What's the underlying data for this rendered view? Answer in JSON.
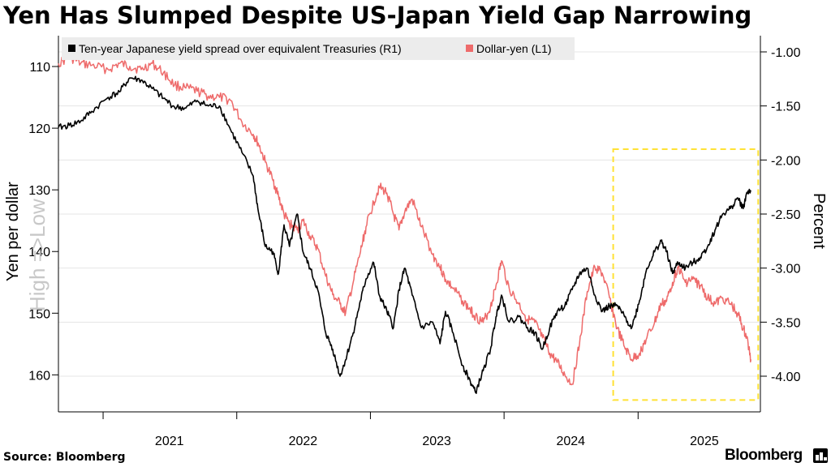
{
  "header": {
    "title": "Yen Has Slumped Despite US-Japan Yield Gap Narrowing"
  },
  "footer": {
    "source": "Source: Bloomberg",
    "brand": "Bloomberg"
  },
  "chart_data": {
    "type": "line",
    "title": "Yen Has Slumped Despite US-Japan Yield Gap Narrowing",
    "legend_placement": "top",
    "grid": true,
    "x_ticks": [
      "2021",
      "2022",
      "2023",
      "2024",
      "2025"
    ],
    "left_axis": {
      "label": "Yen per dollar",
      "annotation": "High =>Low",
      "inverted": true,
      "range": [
        105,
        166
      ],
      "ticks": [
        110,
        120,
        130,
        140,
        150,
        160
      ]
    },
    "right_axis": {
      "label": "Percent",
      "range": [
        -4.33,
        -0.85
      ],
      "ticks": [
        "-1.00",
        "-1.50",
        "-2.00",
        "-2.50",
        "-3.00",
        "-3.50",
        "-4.00"
      ]
    },
    "series": [
      {
        "name": "Ten-year Japanese yield spread over equivalent Treasuries (R1)",
        "axis": "right",
        "color": "#000000",
        "points": [
          [
            "2020-09-01",
            -1.7
          ],
          [
            "2020-10-01",
            -1.68
          ],
          [
            "2020-11-01",
            -1.64
          ],
          [
            "2020-12-01",
            -1.55
          ],
          [
            "2021-01-15",
            -1.42
          ],
          [
            "2021-02-15",
            -1.37
          ],
          [
            "2021-03-15",
            -1.24
          ],
          [
            "2021-04-15",
            -1.26
          ],
          [
            "2021-05-15",
            -1.34
          ],
          [
            "2021-06-15",
            -1.43
          ],
          [
            "2021-07-15",
            -1.51
          ],
          [
            "2021-08-15",
            -1.52
          ],
          [
            "2021-09-15",
            -1.45
          ],
          [
            "2021-10-15",
            -1.5
          ],
          [
            "2021-11-15",
            -1.5
          ],
          [
            "2021-12-15",
            -1.72
          ],
          [
            "2022-01-15",
            -1.93
          ],
          [
            "2022-02-15",
            -2.15
          ],
          [
            "2022-03-01",
            -2.48
          ],
          [
            "2022-03-20",
            -2.8
          ],
          [
            "2022-04-10",
            -2.85
          ],
          [
            "2022-04-25",
            -3.05
          ],
          [
            "2022-05-10",
            -2.6
          ],
          [
            "2022-05-25",
            -2.8
          ],
          [
            "2022-06-15",
            -2.5
          ],
          [
            "2022-07-01",
            -2.85
          ],
          [
            "2022-07-20",
            -3.0
          ],
          [
            "2022-08-10",
            -3.2
          ],
          [
            "2022-09-01",
            -3.6
          ],
          [
            "2022-09-20",
            -3.75
          ],
          [
            "2022-10-10",
            -4.0
          ],
          [
            "2022-10-25",
            -3.85
          ],
          [
            "2022-11-15",
            -3.6
          ],
          [
            "2022-12-05",
            -3.3
          ],
          [
            "2022-12-20",
            -3.1
          ],
          [
            "2023-01-10",
            -2.95
          ],
          [
            "2023-01-25",
            -3.25
          ],
          [
            "2023-02-15",
            -3.4
          ],
          [
            "2023-03-05",
            -3.55
          ],
          [
            "2023-03-20",
            -3.2
          ],
          [
            "2023-04-05",
            -3.0
          ],
          [
            "2023-04-25",
            -3.25
          ],
          [
            "2023-05-20",
            -3.55
          ],
          [
            "2023-06-20",
            -3.5
          ],
          [
            "2023-07-10",
            -3.7
          ],
          [
            "2023-07-25",
            -3.4
          ],
          [
            "2023-08-15",
            -3.6
          ],
          [
            "2023-09-10",
            -3.9
          ],
          [
            "2023-10-01",
            -4.05
          ],
          [
            "2023-10-15",
            -4.15
          ],
          [
            "2023-11-05",
            -3.95
          ],
          [
            "2023-11-25",
            -3.75
          ],
          [
            "2023-12-10",
            -3.45
          ],
          [
            "2023-12-25",
            -3.25
          ],
          [
            "2024-01-15",
            -3.5
          ],
          [
            "2024-02-10",
            -3.45
          ],
          [
            "2024-03-05",
            -3.55
          ],
          [
            "2024-03-25",
            -3.6
          ],
          [
            "2024-04-15",
            -3.75
          ],
          [
            "2024-05-05",
            -3.55
          ],
          [
            "2024-05-25",
            -3.4
          ],
          [
            "2024-06-15",
            -3.35
          ],
          [
            "2024-07-05",
            -3.2
          ],
          [
            "2024-07-25",
            -3.05
          ],
          [
            "2024-08-15",
            -3.0
          ],
          [
            "2024-09-05",
            -3.25
          ],
          [
            "2024-09-25",
            -3.4
          ],
          [
            "2024-10-15",
            -3.35
          ],
          [
            "2024-11-05",
            -3.35
          ],
          [
            "2024-11-25",
            -3.45
          ],
          [
            "2024-12-15",
            -3.55
          ],
          [
            "2025-01-05",
            -3.3
          ],
          [
            "2025-01-25",
            -3.0
          ],
          [
            "2025-02-15",
            -2.85
          ],
          [
            "2025-03-05",
            -2.75
          ],
          [
            "2025-03-20",
            -2.85
          ],
          [
            "2025-04-05",
            -3.05
          ],
          [
            "2025-04-20",
            -2.95
          ],
          [
            "2025-05-10",
            -3.0
          ],
          [
            "2025-05-30",
            -2.95
          ],
          [
            "2025-06-20",
            -2.9
          ],
          [
            "2025-07-10",
            -2.8
          ],
          [
            "2025-07-30",
            -2.65
          ],
          [
            "2025-08-20",
            -2.5
          ],
          [
            "2025-09-10",
            -2.45
          ],
          [
            "2025-09-30",
            -2.35
          ],
          [
            "2025-10-15",
            -2.45
          ],
          [
            "2025-10-25",
            -2.3
          ],
          [
            "2025-11-05",
            -2.28
          ]
        ]
      },
      {
        "name": "Dollar-yen (L1)",
        "axis": "left",
        "color": "#ee6b6b",
        "points": [
          [
            "2020-09-01",
            109.5
          ],
          [
            "2020-10-01",
            108.5
          ],
          [
            "2020-11-01",
            109.5
          ],
          [
            "2020-12-01",
            109.8
          ],
          [
            "2021-01-15",
            110.5
          ],
          [
            "2021-02-15",
            109.5
          ],
          [
            "2021-03-15",
            110.0
          ],
          [
            "2021-04-15",
            110.5
          ],
          [
            "2021-05-15",
            109.5
          ],
          [
            "2021-06-15",
            111.0
          ],
          [
            "2021-07-15",
            113.0
          ],
          [
            "2021-08-15",
            113.5
          ],
          [
            "2021-09-15",
            114.0
          ],
          [
            "2021-10-15",
            114.8
          ],
          [
            "2021-11-15",
            115.0
          ],
          [
            "2021-12-15",
            115.5
          ],
          [
            "2022-01-15",
            119.0
          ],
          [
            "2022-02-15",
            121.0
          ],
          [
            "2022-03-01",
            122.5
          ],
          [
            "2022-03-20",
            125.5
          ],
          [
            "2022-04-10",
            128.5
          ],
          [
            "2022-04-25",
            131.0
          ],
          [
            "2022-05-10",
            134.0
          ],
          [
            "2022-05-25",
            135.5
          ],
          [
            "2022-06-15",
            136.5
          ],
          [
            "2022-07-01",
            135.0
          ],
          [
            "2022-07-20",
            137.5
          ],
          [
            "2022-08-10",
            139.5
          ],
          [
            "2022-09-01",
            144.0
          ],
          [
            "2022-09-20",
            147.0
          ],
          [
            "2022-10-10",
            148.5
          ],
          [
            "2022-10-25",
            150.0
          ],
          [
            "2022-11-15",
            145.0
          ],
          [
            "2022-12-05",
            140.0
          ],
          [
            "2022-12-20",
            136.0
          ],
          [
            "2023-01-10",
            132.0
          ],
          [
            "2023-01-25",
            129.5
          ],
          [
            "2023-02-15",
            130.5
          ],
          [
            "2023-03-05",
            134.0
          ],
          [
            "2023-03-20",
            136.5
          ],
          [
            "2023-04-05",
            133.5
          ],
          [
            "2023-04-25",
            131.5
          ],
          [
            "2023-05-20",
            136.0
          ],
          [
            "2023-06-20",
            140.5
          ],
          [
            "2023-07-10",
            142.5
          ],
          [
            "2023-07-25",
            144.5
          ],
          [
            "2023-08-15",
            146.0
          ],
          [
            "2023-09-10",
            148.0
          ],
          [
            "2023-10-01",
            149.5
          ],
          [
            "2023-10-15",
            150.5
          ],
          [
            "2023-11-05",
            151.5
          ],
          [
            "2023-11-25",
            149.0
          ],
          [
            "2023-12-10",
            145.5
          ],
          [
            "2023-12-25",
            141.5
          ],
          [
            "2024-01-15",
            146.0
          ],
          [
            "2024-02-10",
            148.5
          ],
          [
            "2024-03-05",
            151.0
          ],
          [
            "2024-03-25",
            151.5
          ],
          [
            "2024-04-15",
            154.0
          ],
          [
            "2024-05-05",
            156.5
          ],
          [
            "2024-05-25",
            158.0
          ],
          [
            "2024-06-15",
            160.0
          ],
          [
            "2024-07-05",
            161.5
          ],
          [
            "2024-07-25",
            155.0
          ],
          [
            "2024-08-15",
            146.5
          ],
          [
            "2024-09-05",
            142.5
          ],
          [
            "2024-09-25",
            143.5
          ],
          [
            "2024-10-15",
            147.5
          ],
          [
            "2024-11-05",
            152.5
          ],
          [
            "2024-11-25",
            155.5
          ],
          [
            "2024-12-15",
            157.5
          ],
          [
            "2025-01-05",
            156.5
          ],
          [
            "2025-01-25",
            154.0
          ],
          [
            "2025-02-15",
            151.5
          ],
          [
            "2025-03-05",
            148.5
          ],
          [
            "2025-03-20",
            148.0
          ],
          [
            "2025-04-05",
            145.0
          ],
          [
            "2025-04-20",
            142.5
          ],
          [
            "2025-05-10",
            145.0
          ],
          [
            "2025-05-30",
            144.5
          ],
          [
            "2025-06-20",
            145.5
          ],
          [
            "2025-07-10",
            147.5
          ],
          [
            "2025-07-30",
            148.5
          ],
          [
            "2025-08-20",
            147.5
          ],
          [
            "2025-09-10",
            148.5
          ],
          [
            "2025-09-30",
            150.0
          ],
          [
            "2025-10-15",
            152.5
          ],
          [
            "2025-10-25",
            154.0
          ],
          [
            "2025-11-05",
            157.5
          ]
        ]
      }
    ],
    "highlight": {
      "color": "#ffe135",
      "style": "dashed",
      "x_from": "2024-10-25",
      "x_to": "2025-11-25",
      "y_range_right": [
        -1.9,
        -4.22
      ]
    }
  }
}
